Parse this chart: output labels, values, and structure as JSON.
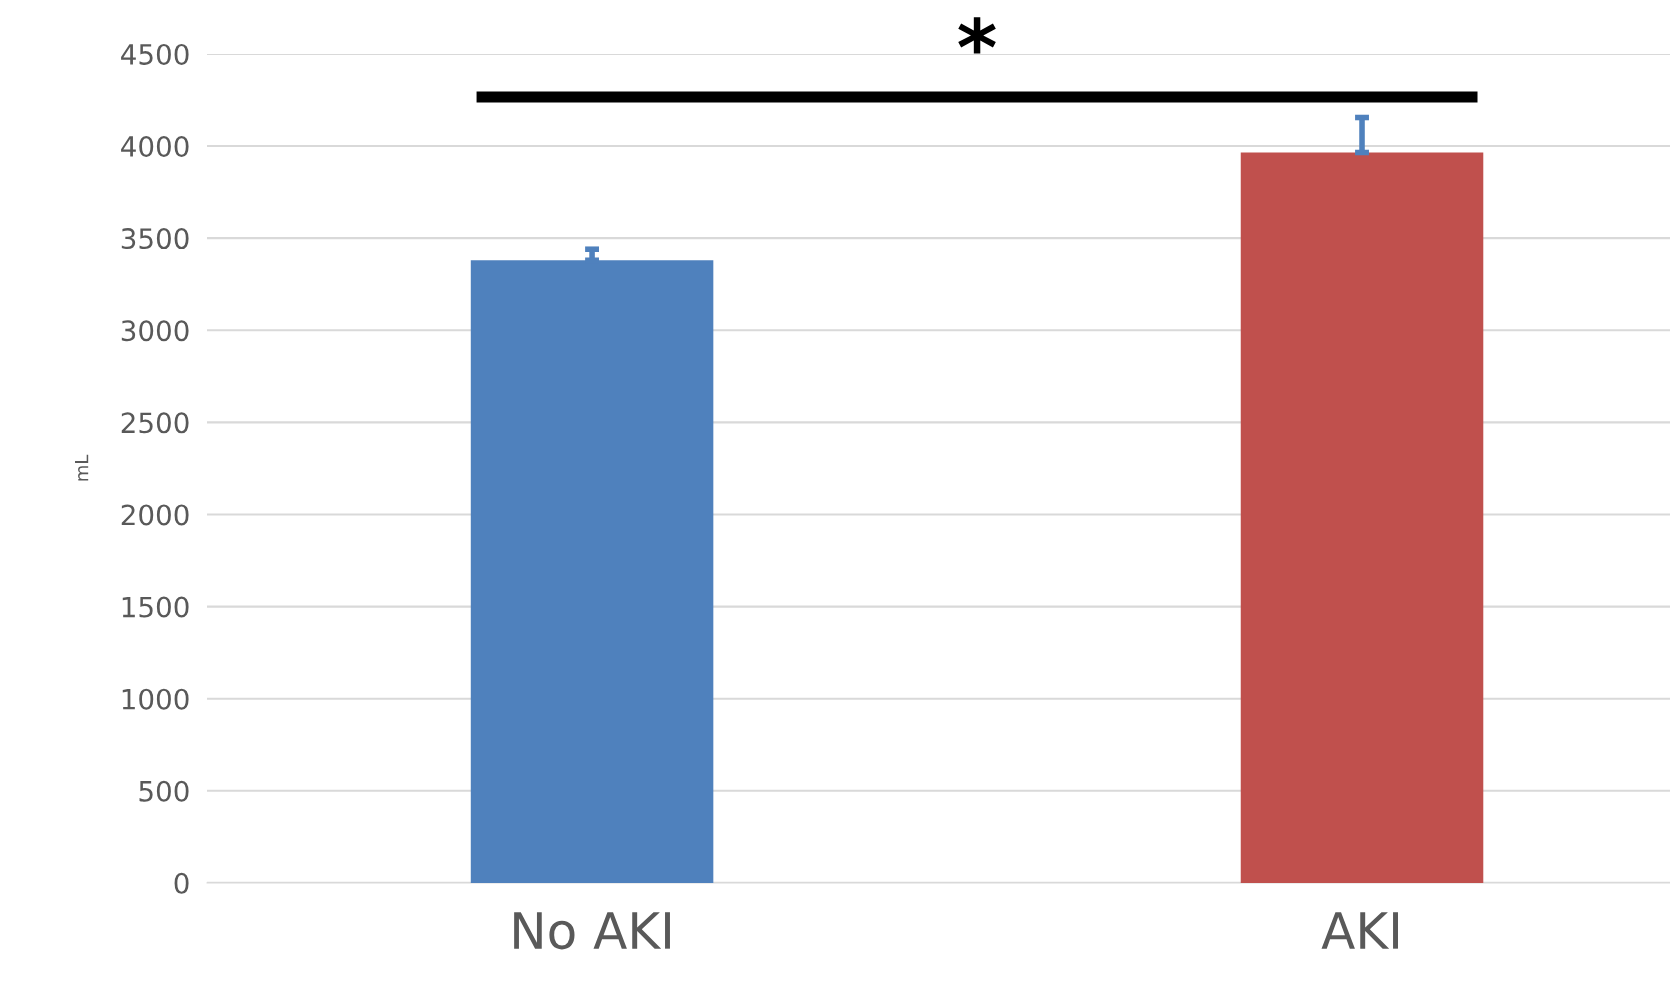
{
  "chart_data": {
    "type": "bar",
    "ylabel": "mL",
    "categories": [
      "No AKI",
      "AKI"
    ],
    "values": [
      3380,
      3965
    ],
    "colors": [
      "#4f81bd",
      "#c0504d"
    ],
    "errors": [
      [
        3380,
        3440
      ],
      [
        3965,
        4155
      ]
    ],
    "ylim": [
      0,
      4500
    ],
    "yticks": [
      0,
      500,
      1000,
      1500,
      2000,
      2500,
      3000,
      3500,
      4000,
      4500
    ],
    "grid": "y",
    "annotations": [
      "*"
    ]
  }
}
